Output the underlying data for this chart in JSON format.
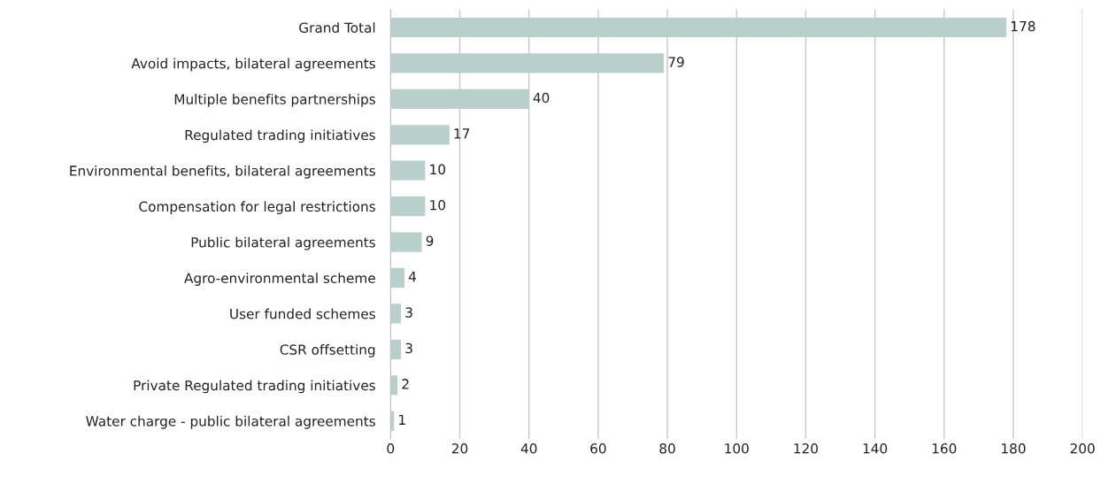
{
  "chart_data": {
    "type": "bar",
    "orientation": "horizontal",
    "categories": [
      "Grand Total",
      "Avoid impacts, bilateral agreements",
      "Multiple benefits partnerships",
      "Regulated trading initiatives",
      "Environmental benefits, bilateral agreements",
      "Compensation for legal restrictions",
      "Public bilateral agreements",
      "Agro-environmental scheme",
      "User funded schemes",
      "CSR offsetting",
      "Private Regulated trading initiatives",
      "Water charge - public bilateral agreements"
    ],
    "values": [
      178,
      79,
      40,
      17,
      10,
      10,
      9,
      4,
      3,
      3,
      2,
      1
    ],
    "color": "#b8cfcc",
    "xlim": [
      0,
      200
    ],
    "xticks": [
      0,
      20,
      40,
      60,
      80,
      100,
      120,
      140,
      160,
      180,
      200
    ],
    "grid": "x",
    "data_labels": true
  }
}
